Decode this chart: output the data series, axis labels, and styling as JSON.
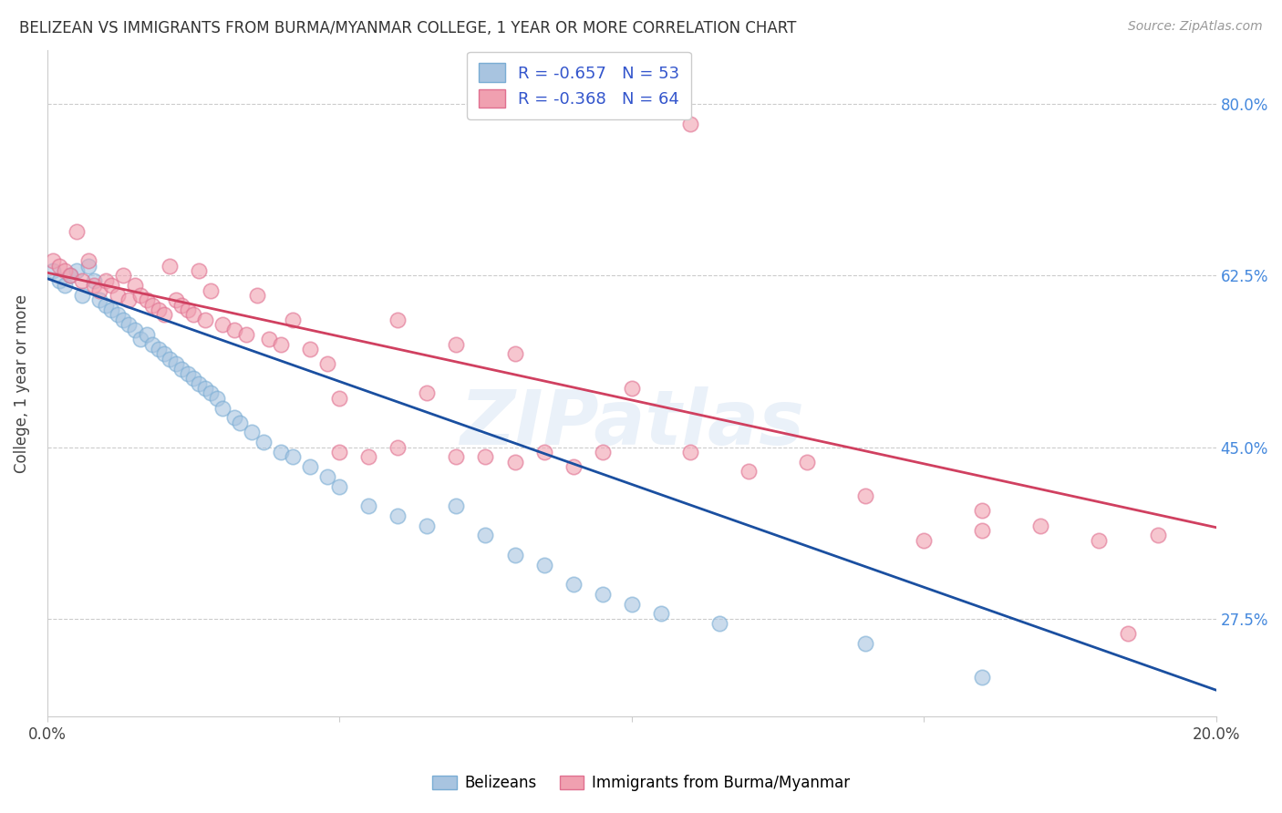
{
  "title": "BELIZEAN VS IMMIGRANTS FROM BURMA/MYANMAR COLLEGE, 1 YEAR OR MORE CORRELATION CHART",
  "source": "Source: ZipAtlas.com",
  "ylabel": "College, 1 year or more",
  "xlim": [
    0.0,
    0.2
  ],
  "ylim": [
    0.175,
    0.855
  ],
  "xtick_vals": [
    0.0,
    0.05,
    0.1,
    0.15,
    0.2
  ],
  "xtick_labels": [
    "0.0%",
    "",
    "",
    "",
    "20.0%"
  ],
  "ytick_vals": [
    0.275,
    0.45,
    0.625,
    0.8
  ],
  "ytick_labels": [
    "27.5%",
    "45.0%",
    "62.5%",
    "80.0%"
  ],
  "grid_color": "#cccccc",
  "bg_color": "#ffffff",
  "watermark": "ZIPatlas",
  "legend_r1": "R = -0.657",
  "legend_n1": "N = 53",
  "legend_r2": "R = -0.368",
  "legend_n2": "N = 64",
  "blue_face": "#a8c4e0",
  "blue_edge": "#7aadd4",
  "blue_line": "#1a4fa0",
  "pink_face": "#f0a0b0",
  "pink_edge": "#e07090",
  "pink_line": "#d04060",
  "label_blue": "Belizeans",
  "label_pink": "Immigrants from Burma/Myanmar",
  "blue_x": [
    0.001,
    0.002,
    0.003,
    0.004,
    0.005,
    0.006,
    0.007,
    0.008,
    0.009,
    0.01,
    0.011,
    0.012,
    0.013,
    0.014,
    0.015,
    0.016,
    0.017,
    0.018,
    0.019,
    0.02,
    0.021,
    0.022,
    0.023,
    0.024,
    0.025,
    0.026,
    0.027,
    0.028,
    0.029,
    0.03,
    0.032,
    0.033,
    0.035,
    0.037,
    0.04,
    0.042,
    0.045,
    0.048,
    0.05,
    0.055,
    0.06,
    0.065,
    0.07,
    0.075,
    0.08,
    0.085,
    0.09,
    0.095,
    0.1,
    0.105,
    0.115,
    0.14,
    0.16
  ],
  "blue_y": [
    0.63,
    0.62,
    0.615,
    0.625,
    0.63,
    0.605,
    0.635,
    0.62,
    0.6,
    0.595,
    0.59,
    0.585,
    0.58,
    0.575,
    0.57,
    0.56,
    0.565,
    0.555,
    0.55,
    0.545,
    0.54,
    0.535,
    0.53,
    0.525,
    0.52,
    0.515,
    0.51,
    0.505,
    0.5,
    0.49,
    0.48,
    0.475,
    0.465,
    0.455,
    0.445,
    0.44,
    0.43,
    0.42,
    0.41,
    0.39,
    0.38,
    0.37,
    0.39,
    0.36,
    0.34,
    0.33,
    0.31,
    0.3,
    0.29,
    0.28,
    0.27,
    0.25,
    0.215
  ],
  "pink_x": [
    0.001,
    0.002,
    0.003,
    0.004,
    0.005,
    0.006,
    0.007,
    0.008,
    0.009,
    0.01,
    0.011,
    0.012,
    0.013,
    0.014,
    0.015,
    0.016,
    0.017,
    0.018,
    0.019,
    0.02,
    0.021,
    0.022,
    0.023,
    0.024,
    0.025,
    0.026,
    0.027,
    0.028,
    0.03,
    0.032,
    0.034,
    0.036,
    0.038,
    0.04,
    0.042,
    0.045,
    0.048,
    0.05,
    0.055,
    0.06,
    0.065,
    0.07,
    0.075,
    0.08,
    0.085,
    0.09,
    0.095,
    0.1,
    0.11,
    0.12,
    0.13,
    0.14,
    0.15,
    0.16,
    0.17,
    0.18,
    0.19,
    0.11,
    0.05,
    0.06,
    0.07,
    0.08,
    0.16,
    0.185
  ],
  "pink_y": [
    0.64,
    0.635,
    0.63,
    0.625,
    0.67,
    0.62,
    0.64,
    0.615,
    0.61,
    0.62,
    0.615,
    0.605,
    0.625,
    0.6,
    0.615,
    0.605,
    0.6,
    0.595,
    0.59,
    0.585,
    0.635,
    0.6,
    0.595,
    0.59,
    0.585,
    0.63,
    0.58,
    0.61,
    0.575,
    0.57,
    0.565,
    0.605,
    0.56,
    0.555,
    0.58,
    0.55,
    0.535,
    0.5,
    0.44,
    0.45,
    0.505,
    0.44,
    0.44,
    0.435,
    0.445,
    0.43,
    0.445,
    0.51,
    0.445,
    0.425,
    0.435,
    0.4,
    0.355,
    0.365,
    0.37,
    0.355,
    0.36,
    0.78,
    0.445,
    0.58,
    0.555,
    0.545,
    0.385,
    0.26
  ]
}
